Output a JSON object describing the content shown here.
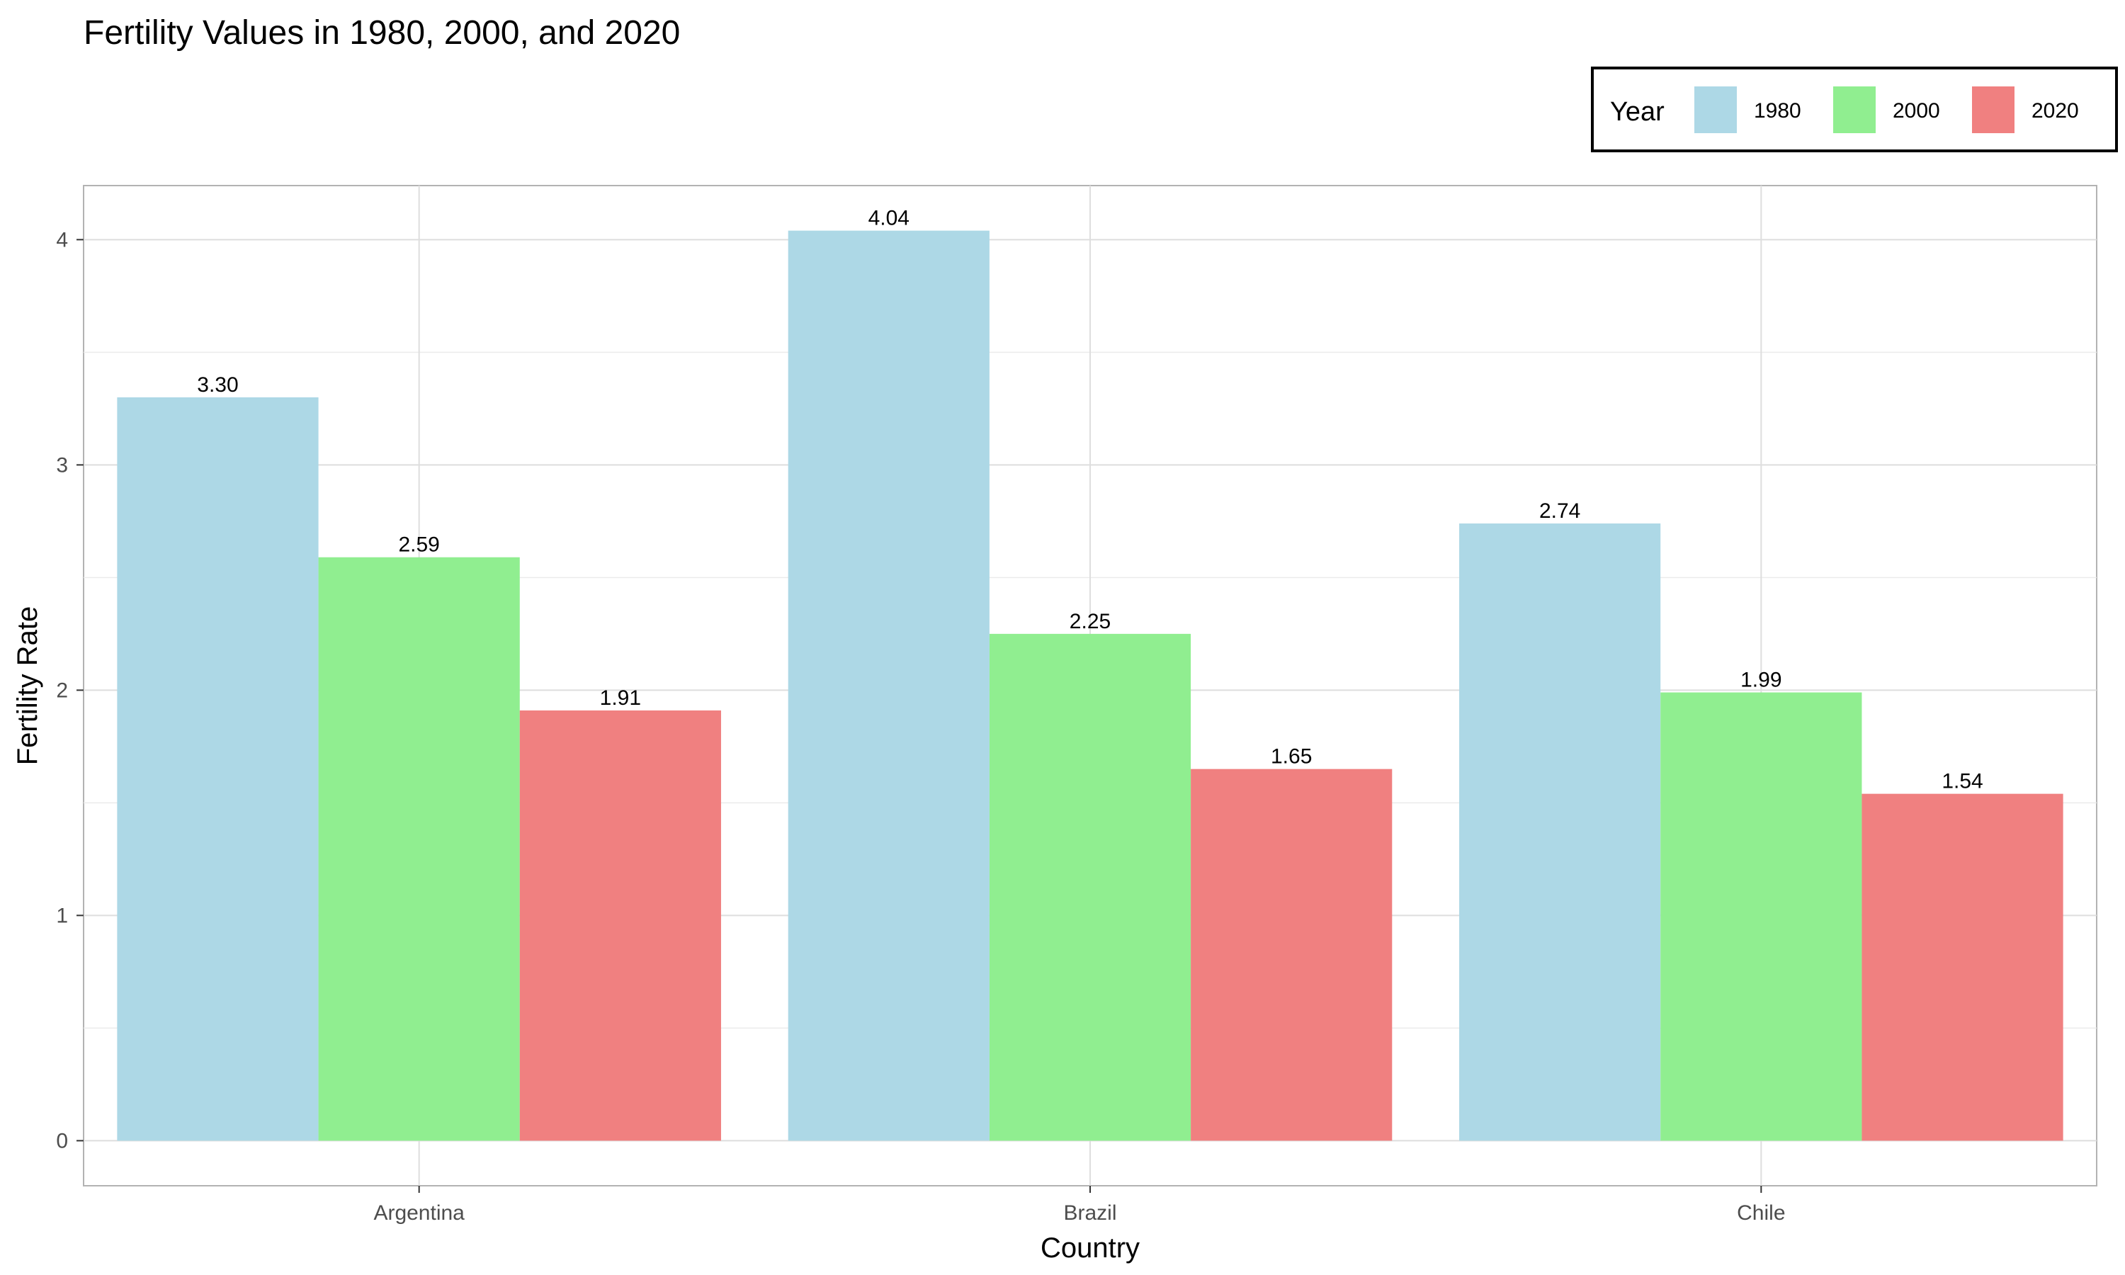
{
  "chart_data": {
    "type": "bar",
    "title": "Fertility Values in 1980, 2000, and 2020",
    "xlabel": "Country",
    "ylabel": "Fertility Rate",
    "categories": [
      "Argentina",
      "Brazil",
      "Chile"
    ],
    "series": [
      {
        "name": "1980",
        "color": "#ADD8E6",
        "values": [
          3.3,
          4.04,
          2.74
        ]
      },
      {
        "name": "2000",
        "color": "#90EE90",
        "values": [
          2.59,
          2.25,
          1.99
        ]
      },
      {
        "name": "2020",
        "color": "#F08080",
        "values": [
          1.91,
          1.65,
          1.54
        ]
      }
    ],
    "data_labels": [
      [
        "3.30",
        "4.04",
        "2.74"
      ],
      [
        "2.59",
        "2.25",
        "1.99"
      ],
      [
        "1.91",
        "1.65",
        "1.54"
      ]
    ],
    "yticks": [
      0,
      1,
      2,
      3,
      4
    ],
    "ylim": [
      -0.2,
      4.24
    ],
    "grid": true,
    "legend": {
      "title": "Year",
      "position": "top-right"
    }
  }
}
